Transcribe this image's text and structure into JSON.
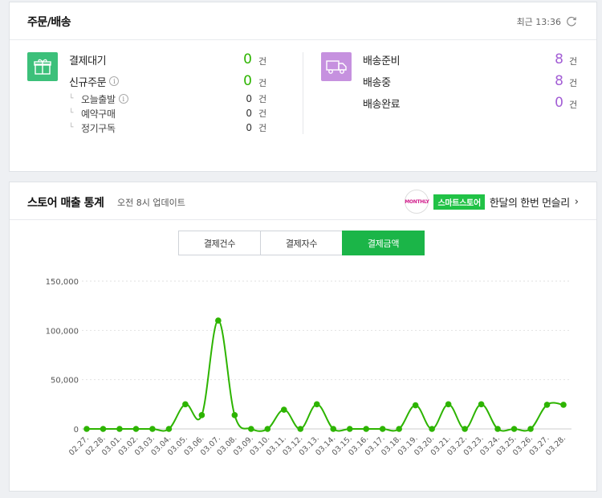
{
  "orders": {
    "title": "주문/배송",
    "refresh_label": "최근 13:36",
    "payment": {
      "items": [
        {
          "label": "결제대기",
          "count": "0",
          "unit": "건"
        },
        {
          "label": "신규주문",
          "count": "0",
          "unit": "건"
        }
      ],
      "subitems": [
        {
          "label": "오늘출발",
          "count": "0",
          "unit": "건"
        },
        {
          "label": "예약구매",
          "count": "0",
          "unit": "건"
        },
        {
          "label": "정기구독",
          "count": "0",
          "unit": "건"
        }
      ]
    },
    "delivery": {
      "items": [
        {
          "label": "배송준비",
          "count": "8",
          "unit": "건"
        },
        {
          "label": "배송중",
          "count": "8",
          "unit": "건"
        },
        {
          "label": "배송완료",
          "count": "0",
          "unit": "건"
        }
      ]
    },
    "colors": {
      "green": "#2db400",
      "purple": "#a35ed5",
      "gift_bg": "#3cc07a",
      "truck_bg": "#c691df"
    }
  },
  "stats": {
    "title": "스토어 매출 통계",
    "updated": "오전 8시 업데이트",
    "promo": {
      "logo_text": "MONTHLY",
      "badge": "스마트스토어",
      "text": "한달의 한번 먼슬리",
      "arrow": "›"
    },
    "tabs": [
      {
        "label": "결제건수",
        "active": false
      },
      {
        "label": "결제자수",
        "active": false
      },
      {
        "label": "결제금액",
        "active": true
      }
    ]
  },
  "chart_data": {
    "type": "line",
    "categories": [
      "02.27.",
      "02.28.",
      "03.01.",
      "03.02.",
      "03.03.",
      "03.04.",
      "03.05.",
      "03.06.",
      "03.07.",
      "03.08.",
      "03.09.",
      "03.10.",
      "03.11.",
      "03.12.",
      "03.13.",
      "03.14.",
      "03.15.",
      "03.16.",
      "03.17.",
      "03.18.",
      "03.19.",
      "03.20.",
      "03.21.",
      "03.22.",
      "03.23.",
      "03.24.",
      "03.25.",
      "03.26.",
      "03.27.",
      "03.28."
    ],
    "values": [
      0,
      0,
      0,
      0,
      0,
      0,
      25000,
      14000,
      110000,
      14000,
      0,
      0,
      19500,
      0,
      25000,
      0,
      0,
      0,
      0,
      0,
      24000,
      0,
      25000,
      0,
      25000,
      0,
      0,
      0,
      24500,
      24500
    ],
    "yticks": [
      0,
      50000,
      100000,
      150000
    ],
    "ytick_labels": [
      "0",
      "50,000",
      "100,000",
      "150,000"
    ],
    "ylim": [
      0,
      150000
    ],
    "color": "#2db400",
    "grid": true
  }
}
